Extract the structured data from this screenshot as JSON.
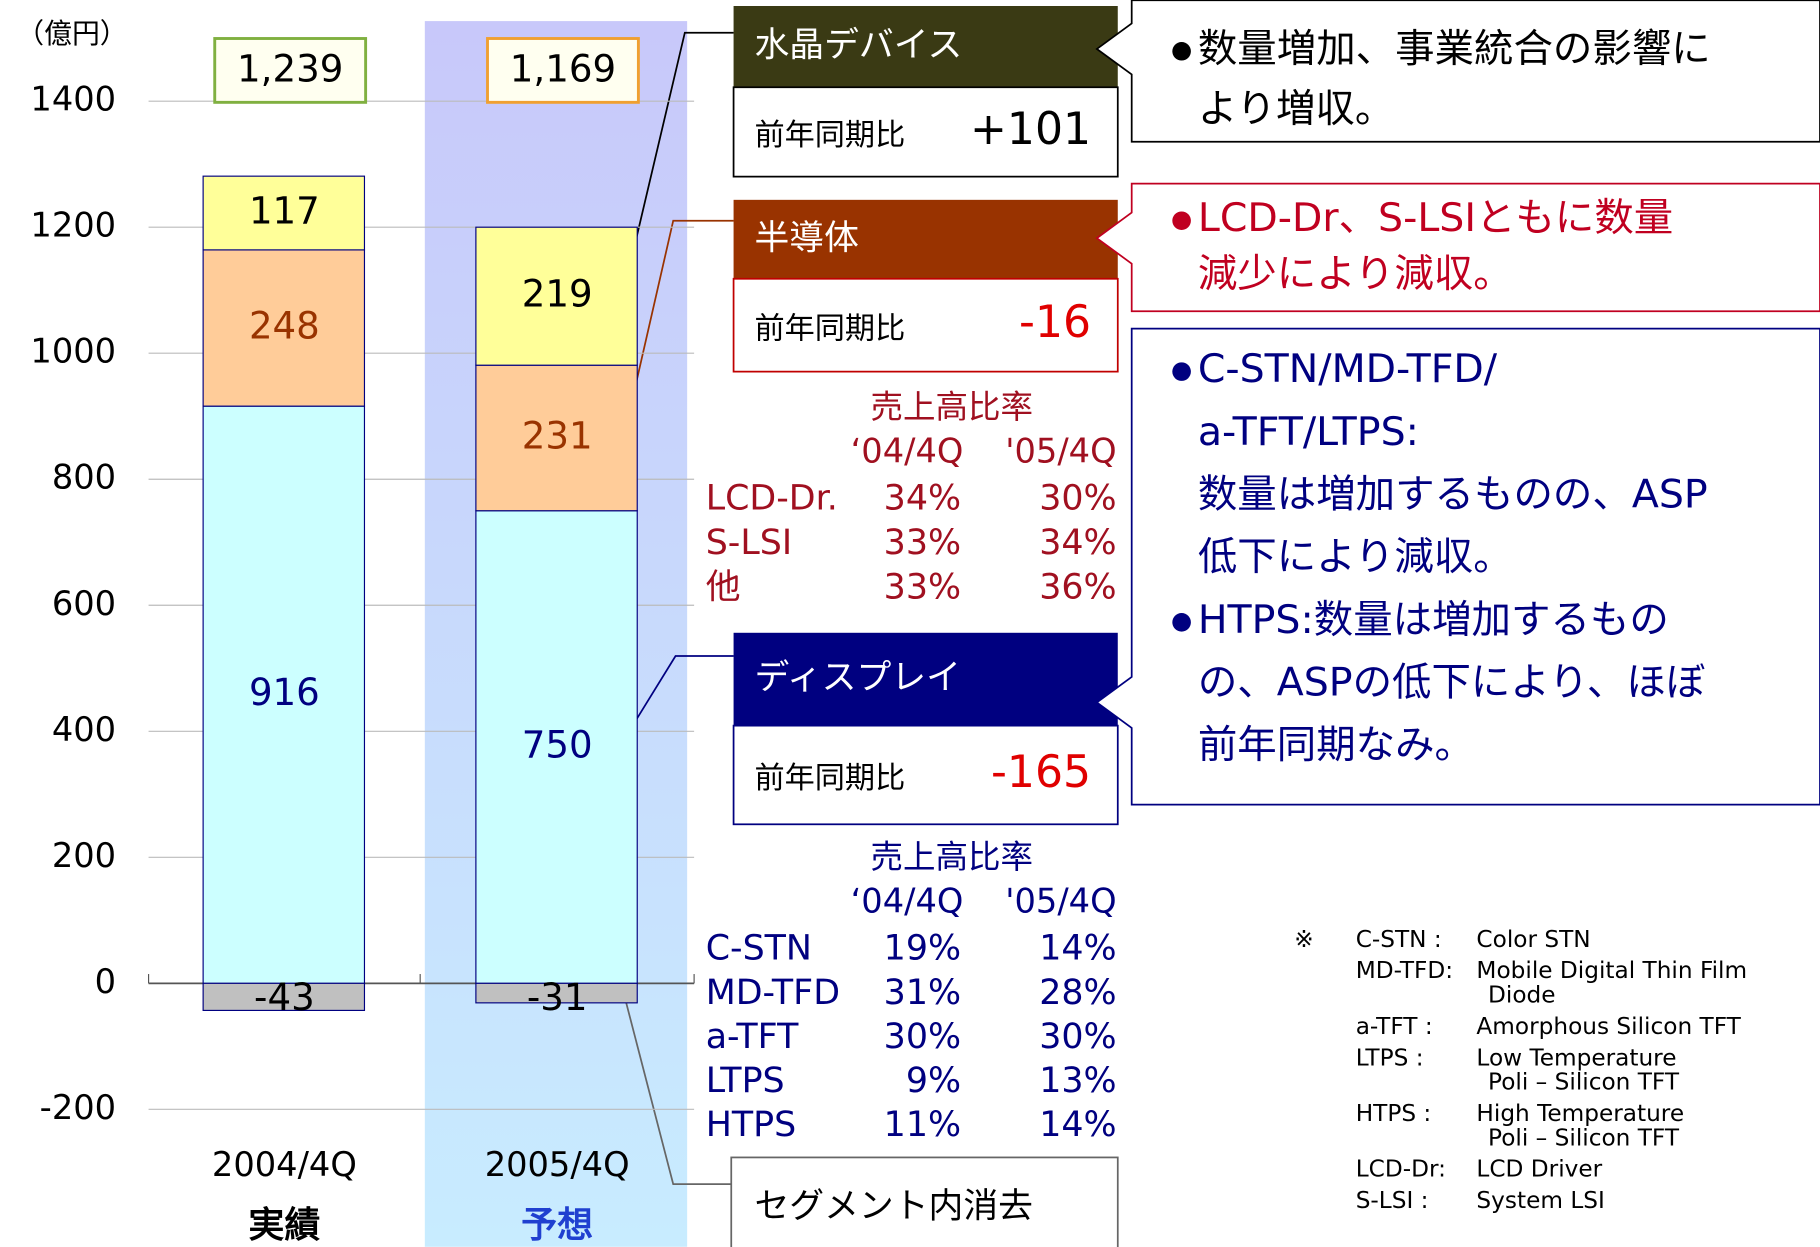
{
  "chart_data": {
    "type": "bar",
    "stacked": true,
    "unit_label": "（億円）",
    "categories": [
      "2004/4Q",
      "2005/4Q"
    ],
    "category_notes": [
      "実績",
      "予想"
    ],
    "series": [
      {
        "name": "ディスプレイ",
        "color": "#ccffff",
        "label_color": "#000080",
        "values": [
          916,
          750
        ]
      },
      {
        "name": "半導体",
        "color": "#ffcc99",
        "label_color": "#993300",
        "values": [
          248,
          231
        ]
      },
      {
        "name": "水晶デバイス",
        "color": "#ffff99",
        "label_color": "#000000",
        "values": [
          117,
          219
        ]
      },
      {
        "name": "セグメント内消去",
        "color": "#c0c0c0",
        "label_color": "#000000",
        "values": [
          -43,
          -31
        ]
      }
    ],
    "totals": [
      1239,
      1169
    ],
    "total_labels": [
      "1,239",
      "1,169"
    ],
    "ylim": [
      -200,
      1400
    ],
    "yticks": [
      -200,
      0,
      200,
      400,
      600,
      800,
      1000,
      1200,
      1400
    ],
    "grid": true
  },
  "segments": [
    {
      "series": 2,
      "comparison_label": "前年同期比",
      "change": "+101",
      "header_color": "#3a3a14",
      "border": "#000000"
    },
    {
      "series": 1,
      "comparison_label": "前年同期比",
      "change": "-16",
      "header_color": "#993300",
      "border": "#c00000"
    },
    {
      "series": 0,
      "comparison_label": "前年同期比",
      "change": "-165",
      "header_color": "#000080",
      "border": "#000080"
    }
  ],
  "comments": [
    {
      "color": "#000000",
      "items": [
        [
          "数量増加、事業統合の影響に",
          "より増収。"
        ]
      ]
    },
    {
      "color": "#c00020",
      "items": [
        [
          "LCD-Dr、S-LSIともに数量",
          "減少により減収。"
        ]
      ]
    },
    {
      "color": "#000080",
      "items": [
        [
          "C-STN/MD-TFD/",
          "a-TFT/LTPS:",
          "数量は増加するものの、ASP",
          "低下により減収。"
        ],
        [
          "HTPS:数量は増加するもの",
          "の、ASPの低下により、ほぼ",
          "前年同期なみ。"
        ]
      ]
    }
  ],
  "share_tables": [
    {
      "title": "売上高比率",
      "columns": [
        "‘04/4Q",
        "'05/4Q"
      ],
      "color": "#a01020",
      "rows": [
        [
          "LCD-Dr.",
          "34%",
          "30%"
        ],
        [
          "S-LSI",
          "33%",
          "34%"
        ],
        [
          "他",
          "33%",
          "36%"
        ]
      ]
    },
    {
      "title": "売上高比率",
      "columns": [
        "‘04/4Q",
        "'05/4Q"
      ],
      "color": "#000080",
      "rows": [
        [
          "C-STN",
          "19%",
          "14%"
        ],
        [
          "MD-TFD",
          "31%",
          "28%"
        ],
        [
          "a-TFT",
          "30%",
          "30%"
        ],
        [
          "LTPS",
          "9%",
          "13%"
        ],
        [
          "HTPS",
          "11%",
          "14%"
        ]
      ]
    }
  ],
  "footnote": {
    "mark": "※",
    "entries": [
      {
        "term": "C-STN :",
        "def": [
          "Color STN"
        ]
      },
      {
        "term": "MD-TFD:",
        "def": [
          "Mobile Digital Thin Film",
          "Diode"
        ]
      },
      {
        "term": "a-TFT :",
        "def": [
          "Amorphous  Silicon TFT"
        ]
      },
      {
        "term": "LTPS :",
        "def": [
          "Low Temperature",
          "Poli – Silicon  TFT"
        ]
      },
      {
        "term": "HTPS :",
        "def": [
          "High Temperature",
          "Poli – Silicon  TFT"
        ]
      },
      {
        "term": "LCD-Dr:",
        "def": [
          "LCD Driver"
        ]
      },
      {
        "term": "S-LSI :",
        "def": [
          "System LSI"
        ]
      }
    ]
  }
}
